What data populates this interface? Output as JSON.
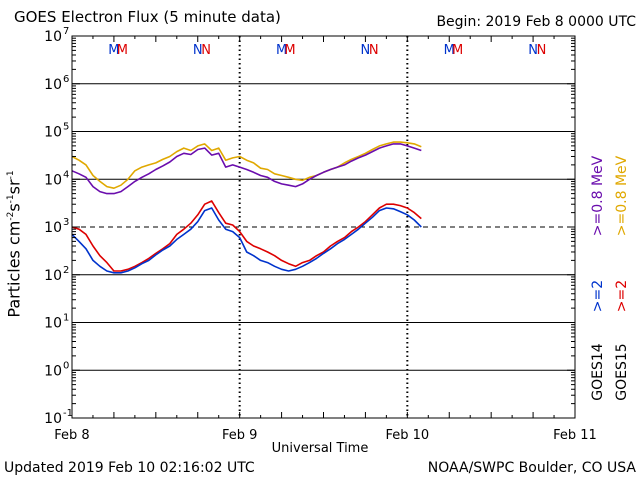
{
  "title": "GOES Electron Flux (5 minute data)",
  "begin": "Begin: 2019 Feb 8 0000 UTC",
  "updated": "Updated 2019 Feb 10 02:16:02 UTC",
  "credit": "NOAA/SWPC Boulder, CO USA",
  "colors": {
    "goes14_low": "#6a0dad",
    "goes15_low": "#e0a800",
    "goes14_high": "#0033cc",
    "goes15_high": "#dd0000",
    "axis": "#000000"
  },
  "right_legend": {
    "goes14": "GOES14",
    "goes15": "GOES15",
    "g14_low": ">=0.8 MeV",
    "g15_low": ">=0.8 MeV",
    "g14_high": ">=2",
    "g15_high": ">=2"
  },
  "chart_data": {
    "type": "line",
    "title": "GOES Electron Flux (5 minute data)",
    "xlabel": "Universal Time",
    "ylabel": "Particles cm-2s-1sr-1",
    "yscale": "log",
    "ylim": [
      0.1,
      10000000
    ],
    "xlim_hours": [
      0,
      72
    ],
    "x_ticks": [
      {
        "hour": 0,
        "label": "Feb 8"
      },
      {
        "hour": 24,
        "label": "Feb 9"
      },
      {
        "hour": 48,
        "label": "Feb 10"
      },
      {
        "hour": 72,
        "label": "Feb 11"
      }
    ],
    "y_ticks": [
      {
        "exp": 7,
        "value": 10000000
      },
      {
        "exp": 6,
        "value": 1000000
      },
      {
        "exp": 5,
        "value": 100000
      },
      {
        "exp": 4,
        "value": 10000
      },
      {
        "exp": 3,
        "value": 1000
      },
      {
        "exp": 2,
        "value": 100
      },
      {
        "exp": 1,
        "value": 10
      },
      {
        "exp": 0,
        "value": 1
      },
      {
        "exp": -1,
        "value": 0.1
      }
    ],
    "threshold": {
      "value": 1000,
      "style": "dashed"
    },
    "markers": [
      {
        "hour": 6.0,
        "label": "M",
        "color": "#0033cc"
      },
      {
        "hour": 7.2,
        "label": "M",
        "color": "#dd0000"
      },
      {
        "hour": 18.0,
        "label": "N",
        "color": "#0033cc"
      },
      {
        "hour": 19.2,
        "label": "N",
        "color": "#dd0000"
      },
      {
        "hour": 30.0,
        "label": "M",
        "color": "#0033cc"
      },
      {
        "hour": 31.2,
        "label": "M",
        "color": "#dd0000"
      },
      {
        "hour": 42.0,
        "label": "N",
        "color": "#0033cc"
      },
      {
        "hour": 43.2,
        "label": "N",
        "color": "#dd0000"
      },
      {
        "hour": 54.0,
        "label": "M",
        "color": "#0033cc"
      },
      {
        "hour": 55.2,
        "label": "M",
        "color": "#dd0000"
      },
      {
        "hour": 66.0,
        "label": "N",
        "color": "#0033cc"
      },
      {
        "hour": 67.2,
        "label": "N",
        "color": "#dd0000"
      }
    ],
    "series": [
      {
        "name": "GOES15 >=0.8 MeV",
        "color": "#e0a800",
        "x": [
          0,
          1,
          2,
          3,
          4,
          5,
          6,
          7,
          8,
          9,
          10,
          11,
          12,
          13,
          14,
          15,
          16,
          17,
          18,
          19,
          20,
          21,
          22,
          23,
          24,
          25,
          26,
          27,
          28,
          29,
          30,
          31,
          32,
          33,
          34,
          35,
          36,
          37,
          38,
          39,
          40,
          41,
          42,
          43,
          44,
          45,
          46,
          47,
          48,
          49,
          50
        ],
        "y": [
          30000,
          25000,
          20000,
          12000,
          9000,
          7000,
          6500,
          7500,
          10000,
          15000,
          18000,
          20000,
          22000,
          26000,
          30000,
          38000,
          45000,
          40000,
          50000,
          55000,
          40000,
          45000,
          25000,
          28000,
          30000,
          25000,
          22000,
          17000,
          16000,
          13000,
          12000,
          11000,
          10000,
          9500,
          11000,
          12000,
          14000,
          16000,
          18000,
          22000,
          26000,
          30000,
          35000,
          42000,
          50000,
          55000,
          60000,
          60000,
          58000,
          55000,
          48000
        ]
      },
      {
        "name": "GOES14 >=0.8 MeV",
        "color": "#6a0dad",
        "x": [
          0,
          1,
          2,
          3,
          4,
          5,
          6,
          7,
          8,
          9,
          10,
          11,
          12,
          13,
          14,
          15,
          16,
          17,
          18,
          19,
          20,
          21,
          22,
          23,
          24,
          25,
          26,
          27,
          28,
          29,
          30,
          31,
          32,
          33,
          34,
          35,
          36,
          37,
          38,
          39,
          40,
          41,
          42,
          43,
          44,
          45,
          46,
          47,
          48,
          49,
          50
        ],
        "y": [
          15000,
          13000,
          11000,
          7000,
          5500,
          5000,
          5000,
          5500,
          7000,
          9000,
          11000,
          13000,
          16000,
          19000,
          23000,
          30000,
          35000,
          33000,
          42000,
          45000,
          32000,
          35000,
          18000,
          20000,
          18000,
          16000,
          14000,
          12000,
          11000,
          9000,
          8000,
          7500,
          7000,
          8000,
          10000,
          12000,
          14000,
          16000,
          18000,
          20000,
          24000,
          28000,
          32000,
          38000,
          45000,
          50000,
          55000,
          55000,
          50000,
          45000,
          40000
        ]
      },
      {
        "name": "GOES15 >=2 MeV",
        "color": "#dd0000",
        "x": [
          0,
          1,
          2,
          3,
          4,
          5,
          6,
          7,
          8,
          9,
          10,
          11,
          12,
          13,
          14,
          15,
          16,
          17,
          18,
          19,
          20,
          21,
          22,
          23,
          24,
          25,
          26,
          27,
          28,
          29,
          30,
          31,
          32,
          33,
          34,
          35,
          36,
          37,
          38,
          39,
          40,
          41,
          42,
          43,
          44,
          45,
          46,
          47,
          48,
          49,
          50
        ],
        "y": [
          1000,
          900,
          700,
          400,
          250,
          180,
          120,
          120,
          130,
          150,
          180,
          220,
          280,
          350,
          450,
          700,
          900,
          1200,
          1800,
          3000,
          3500,
          2000,
          1200,
          1100,
          800,
          500,
          400,
          350,
          300,
          250,
          200,
          170,
          150,
          180,
          200,
          250,
          300,
          400,
          500,
          600,
          800,
          1000,
          1300,
          1800,
          2500,
          3000,
          3000,
          2800,
          2500,
          2000,
          1500
        ]
      },
      {
        "name": "GOES14 >=2 MeV",
        "color": "#0033cc",
        "x": [
          0,
          1,
          2,
          3,
          4,
          5,
          6,
          7,
          8,
          9,
          10,
          11,
          12,
          13,
          14,
          15,
          16,
          17,
          18,
          19,
          20,
          21,
          22,
          23,
          24,
          25,
          26,
          27,
          28,
          29,
          30,
          31,
          32,
          33,
          34,
          35,
          36,
          37,
          38,
          39,
          40,
          41,
          42,
          43,
          44,
          45,
          46,
          47,
          48,
          49,
          50
        ],
        "y": [
          700,
          500,
          350,
          200,
          150,
          120,
          110,
          110,
          120,
          140,
          170,
          200,
          260,
          330,
          400,
          550,
          700,
          900,
          1300,
          2200,
          2500,
          1400,
          900,
          800,
          600,
          300,
          250,
          200,
          180,
          150,
          130,
          120,
          130,
          150,
          180,
          220,
          280,
          350,
          450,
          550,
          700,
          900,
          1200,
          1600,
          2200,
          2500,
          2400,
          2100,
          1800,
          1400,
          1000
        ]
      }
    ]
  }
}
